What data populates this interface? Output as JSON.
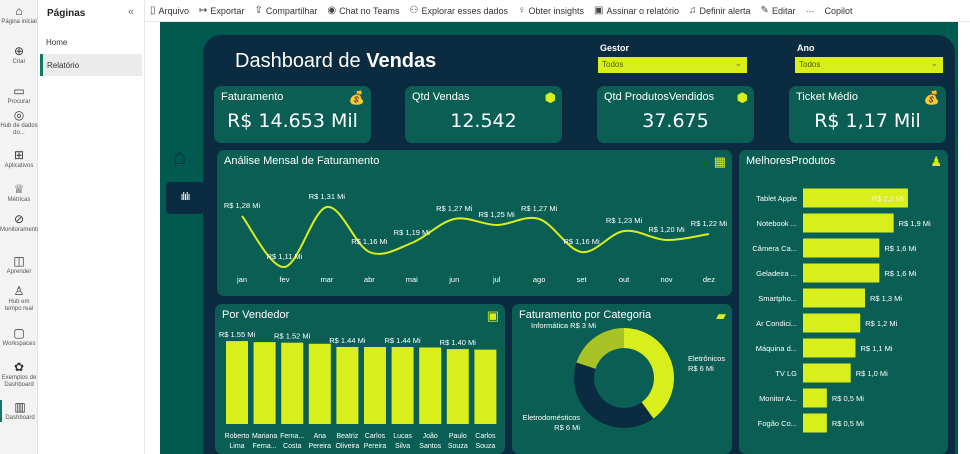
{
  "rail": [
    {
      "icon": "home-icon",
      "label": "Página inicial"
    },
    {
      "icon": "plus-icon",
      "label": "Criar"
    },
    {
      "icon": "folder-icon",
      "label": "Procurar"
    },
    {
      "icon": "hub-icon",
      "label": "Hub de dados do..."
    },
    {
      "icon": "apps-icon",
      "label": "Aplicativos"
    },
    {
      "icon": "trophy-icon",
      "label": "Métricas"
    },
    {
      "icon": "monitor-icon",
      "label": "Monitoramento"
    },
    {
      "icon": "book-icon",
      "label": "Aprender"
    },
    {
      "icon": "realtime-icon",
      "label": "Hub em tempo real"
    },
    {
      "icon": "workspaces-icon",
      "label": "Workspaces"
    },
    {
      "icon": "dashboard-examples-icon",
      "label": "Exemplos de Dashboard"
    },
    {
      "icon": "report-icon",
      "label": "Dashboard"
    }
  ],
  "pages": {
    "title": "Páginas",
    "items": [
      "Home",
      "Relatório"
    ],
    "active": "Relatório"
  },
  "toolbar": [
    "Arquivo",
    "Exportar",
    "Compartilhar",
    "Chat no Teams",
    "Explorar esses dados",
    "Obter insights",
    "Assinar o relatório",
    "Definir alerta",
    "Editar",
    "···",
    "Copilot"
  ],
  "dashboard": {
    "title_prefix": "Dashboard de ",
    "title_bold": "Vendas",
    "filters": [
      {
        "label": "Gestor",
        "value": "Todos"
      },
      {
        "label": "Ano",
        "value": "Todos"
      }
    ],
    "kpis": [
      {
        "title": "Faturamento",
        "value": "R$ 14.653 Mil"
      },
      {
        "title": "Qtd Vendas",
        "value": "12.542"
      },
      {
        "title": "Qtd ProdutosVendidos",
        "value": "37.675"
      },
      {
        "title": "Ticket Médio",
        "value": "R$ 1,17 Mil"
      }
    ],
    "colors": {
      "accent": "#d9ef1c",
      "panel": "#0b2b41",
      "card": "#0a5e54",
      "canvas": "#005a4f"
    }
  },
  "chart_data": [
    {
      "type": "line",
      "title": "Análise Mensal de Faturamento",
      "categories": [
        "jan",
        "fev",
        "mar",
        "abr",
        "mai",
        "jun",
        "jul",
        "ago",
        "set",
        "out",
        "nov",
        "dez"
      ],
      "values": [
        1.28,
        1.11,
        1.31,
        1.16,
        1.19,
        1.27,
        1.25,
        1.27,
        1.16,
        1.23,
        1.2,
        1.22
      ],
      "labels": [
        "R$ 1,28 Mi",
        "R$ 1,11 Mi",
        "R$ 1,31 Mi",
        "R$ 1,16 Mi",
        "R$ 1,19 Mi",
        "R$ 1,27 Mi",
        "R$ 1,25 Mi",
        "R$ 1,27 Mi",
        "R$ 1,16 Mi",
        "R$ 1,23 Mi",
        "R$ 1,20 Mi",
        "R$ 1,22 Mi"
      ]
    },
    {
      "type": "bar",
      "title": "Por Vendedor",
      "categories": [
        [
          "Roberto",
          "Lima"
        ],
        [
          "Mariana",
          "Ferna..."
        ],
        [
          "Ferna...",
          "Costa"
        ],
        [
          "Ana",
          "Pereira"
        ],
        [
          "Beatriz",
          "Oliveira"
        ],
        [
          "Carlos",
          "Pereira"
        ],
        [
          "Lucas",
          "Silva"
        ],
        [
          "João",
          "Santos"
        ],
        [
          "Paulo",
          "Souza"
        ],
        [
          "Carlos",
          "Souza"
        ]
      ],
      "values": [
        1.55,
        1.53,
        1.52,
        1.5,
        1.44,
        1.44,
        1.44,
        1.43,
        1.4,
        1.39
      ],
      "labels": [
        "R$ 1.55 Mi",
        "",
        "R$ 1.52 Mi",
        "",
        "R$ 1.44 Mi",
        "",
        "R$ 1.44 Mi",
        "",
        "R$ 1.40 Mi",
        ""
      ]
    },
    {
      "type": "pie",
      "title": "Faturamento por Categoria",
      "categories": [
        "Eletrônicos",
        "Eletrodomésticos",
        "Informática"
      ],
      "values": [
        6,
        6,
        3
      ],
      "labels": [
        "R$ 6 Mi",
        "R$ 6 Mi",
        "R$ 3 Mi"
      ],
      "colors": [
        "#d9ef1c",
        "#0b2b41",
        "#a9c225"
      ]
    },
    {
      "type": "bar",
      "orientation": "horizontal",
      "title": "MelhoresProdutos",
      "categories": [
        "Tablet Apple",
        "Notebook ...",
        "Câmera Ca...",
        "Geladeira ...",
        "Smartpho...",
        "Ar Condici...",
        "Máquina d...",
        "TV LG",
        "Monitor A...",
        "Fogão Co..."
      ],
      "values": [
        2.2,
        1.9,
        1.6,
        1.6,
        1.3,
        1.2,
        1.1,
        1.0,
        0.5,
        0.5
      ],
      "labels": [
        "R$ 2,2 Mi",
        "R$ 1,9 Mi",
        "R$ 1,6 Mi",
        "R$ 1,6 Mi",
        "R$ 1,3 Mi",
        "R$ 1,2 Mi",
        "R$ 1,1 Mi",
        "R$ 1,0 Mi",
        "R$ 0,5 Mi",
        "R$ 0,5 Mi"
      ]
    }
  ]
}
